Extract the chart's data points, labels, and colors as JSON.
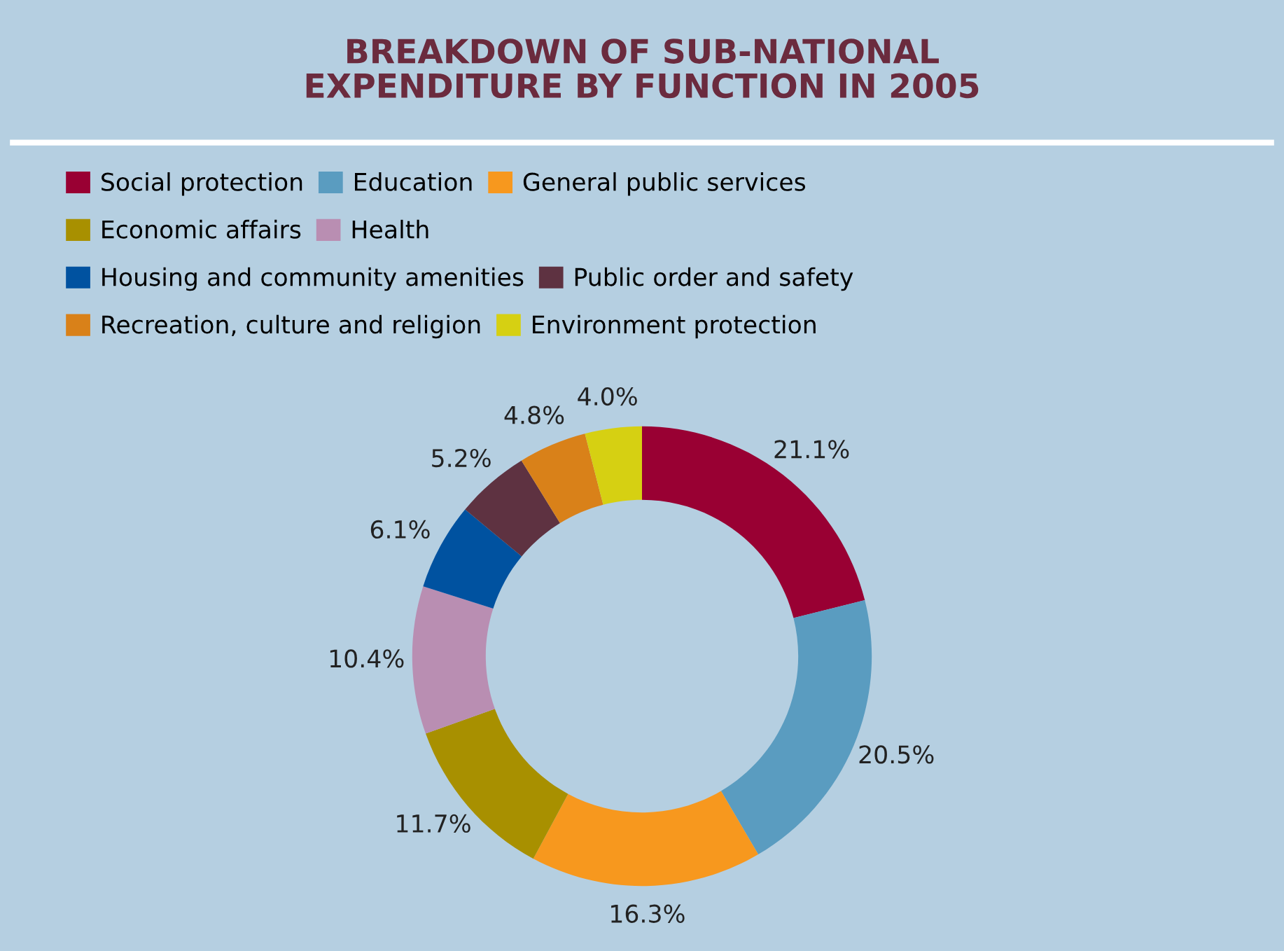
{
  "chart_data": {
    "type": "donut",
    "title": "BREAKDOWN OF SUB-NATIONAL\nEXPENDITURE BY FUNCTION IN 2005",
    "categories": [
      "Social protection",
      "Education",
      "General public services",
      "Economic affairs",
      "Health",
      "Housing and community amenities",
      "Public order and safety",
      "Recreation, culture and religion",
      "Environment protection"
    ],
    "values": [
      21.1,
      20.5,
      16.3,
      11.7,
      10.4,
      6.1,
      5.2,
      4.8,
      4.0
    ],
    "colors": [
      "#990033",
      "#5a9cc0",
      "#f7981e",
      "#a89000",
      "#b98eb2",
      "#0052a0",
      "#5e3241",
      "#d98119",
      "#d6d012"
    ],
    "value_labels": [
      "21.1%",
      "20.5%",
      "16.3%",
      "11.7%",
      "10.4%",
      "6.1%",
      "5.2%",
      "4.8%",
      "4.0%"
    ],
    "legend": "top"
  }
}
